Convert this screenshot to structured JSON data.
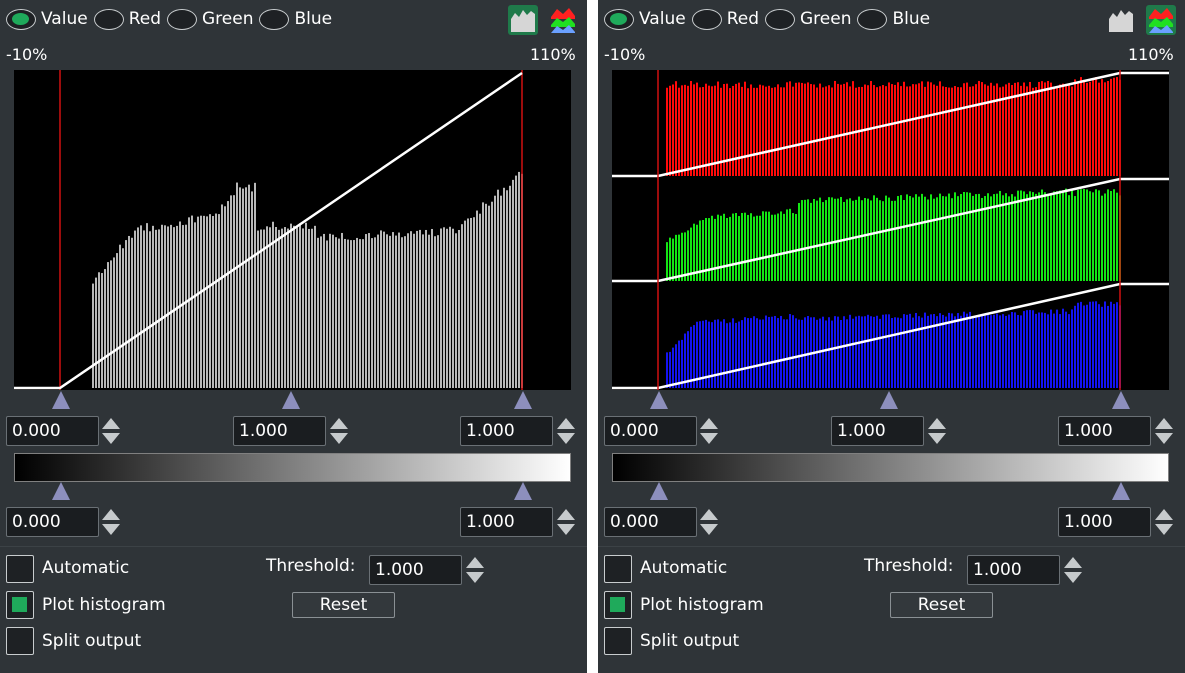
{
  "panels": [
    {
      "id": "left",
      "mode": "value",
      "channels": [
        {
          "label": "Value",
          "selected": true
        },
        {
          "label": "Red",
          "selected": false
        },
        {
          "label": "Green",
          "selected": false
        },
        {
          "label": "Blue",
          "selected": false
        }
      ],
      "range_min_label": "-10%",
      "range_max_label": "110%",
      "curve": {
        "black_point": 0.0,
        "gamma": 1.0,
        "white_point": 1.0
      },
      "inputs": {
        "black": "0.000",
        "gamma": "1.000",
        "white": "1.000"
      },
      "outputs": {
        "black": "0.000",
        "white": "1.000"
      },
      "automatic_label": "Automatic",
      "automatic_checked": false,
      "plot_histogram_label": "Plot histogram",
      "plot_histogram_checked": true,
      "split_output_label": "Split output",
      "split_output_checked": false,
      "threshold_label": "Threshold:",
      "threshold_value": "1.000",
      "reset_label": "Reset"
    },
    {
      "id": "right",
      "mode": "rgb",
      "channels": [
        {
          "label": "Value",
          "selected": true
        },
        {
          "label": "Red",
          "selected": false
        },
        {
          "label": "Green",
          "selected": false
        },
        {
          "label": "Blue",
          "selected": false
        }
      ],
      "range_min_label": "-10%",
      "range_max_label": "110%",
      "curve": {
        "black_point": 0.0,
        "gamma": 1.0,
        "white_point": 1.0
      },
      "inputs": {
        "black": "0.000",
        "gamma": "1.000",
        "white": "1.000"
      },
      "outputs": {
        "black": "0.000",
        "white": "1.000"
      },
      "automatic_label": "Automatic",
      "automatic_checked": false,
      "plot_histogram_label": "Plot histogram",
      "plot_histogram_checked": true,
      "split_output_label": "Split output",
      "split_output_checked": false,
      "threshold_label": "Threshold:",
      "threshold_value": "1.000",
      "reset_label": "Reset"
    }
  ],
  "icons": {
    "histogram_mode": "value-histogram-icon",
    "rgb_mode": "rgb-histogram-icon"
  },
  "colors": {
    "panel_bg": "#2f3438",
    "radio_on": "#1faa5b",
    "marker": "#8d8fbd",
    "limit_line": "#d01010",
    "value_bars": "#b8b8b8",
    "red_bars": "#ff0a0a",
    "green_bars": "#14e614",
    "blue_bars": "#1414f0",
    "curve": "#ffffff"
  }
}
